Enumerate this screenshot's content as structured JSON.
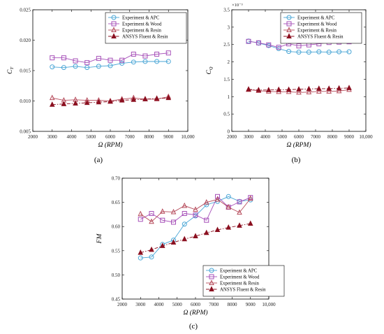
{
  "chart_data": [
    {
      "type": "line",
      "panel_label": "(a)",
      "ylabel": "C",
      "ylabel_sub": "T",
      "xlabel": "Ω (RPM)",
      "xlim": [
        2000,
        10000
      ],
      "ylim": [
        0.005,
        0.025
      ],
      "xticks": [
        2000,
        3000,
        4000,
        5000,
        6000,
        7000,
        8000,
        9000,
        10000
      ],
      "xtick_labels": [
        "2000",
        "3000",
        "4000",
        "5000",
        "6000",
        "7000",
        "8000",
        "9000",
        "10,000"
      ],
      "yticks": [
        0.005,
        0.01,
        0.015,
        0.02,
        0.025
      ],
      "ytick_labels": [
        "0.005",
        "0.010",
        "0.015",
        "0.020",
        "0.025"
      ],
      "y_multiplier": "",
      "legend_position": "top-right",
      "x": [
        3000,
        3600,
        4200,
        4800,
        5400,
        6000,
        6600,
        7200,
        7800,
        8400,
        9000
      ],
      "series": [
        {
          "name": "Experiment & APC",
          "color": "#4aa6d6",
          "marker": "circle",
          "dash": "solid",
          "values": [
            0.0156,
            0.0155,
            0.0157,
            0.0155,
            0.0157,
            0.0158,
            0.0162,
            0.0164,
            0.0165,
            0.0165,
            0.0165
          ]
        },
        {
          "name": "Experiment & Wood",
          "color": "#a64fb8",
          "marker": "square",
          "dash": "solid",
          "values": [
            0.0171,
            0.0171,
            0.0166,
            0.0163,
            0.017,
            0.0167,
            0.0167,
            0.0177,
            0.0174,
            0.0177,
            0.0179
          ]
        },
        {
          "name": "Experiment & Resin",
          "color": "#b54a5a",
          "marker": "triangle-open",
          "dash": "solid",
          "values": [
            0.0105,
            0.0101,
            0.0102,
            0.0101,
            0.0101,
            0.01,
            0.0103,
            0.0105,
            0.0103,
            0.0103,
            0.0107
          ]
        },
        {
          "name": "ANSYS Fluent & Resin",
          "color": "#8b1020",
          "marker": "triangle-filled",
          "dash": "dashdot",
          "values": [
            0.0094,
            0.0095,
            0.0096,
            0.0097,
            0.0098,
            0.0099,
            0.0101,
            0.0102,
            0.0103,
            0.0104,
            0.0105
          ]
        }
      ]
    },
    {
      "type": "line",
      "panel_label": "(b)",
      "ylabel": "C",
      "ylabel_sub": "Q",
      "xlabel": "Ω (RPM)",
      "xlim": [
        2000,
        10000
      ],
      "ylim": [
        0,
        3.5
      ],
      "xticks": [
        2000,
        3000,
        4000,
        5000,
        6000,
        7000,
        8000,
        9000,
        10000
      ],
      "xtick_labels": [
        "2000",
        "3000",
        "4000",
        "5000",
        "6000",
        "7000",
        "8000",
        "9000",
        "10,000"
      ],
      "yticks": [
        0,
        0.5,
        1,
        1.5,
        2,
        2.5,
        3,
        3.5
      ],
      "ytick_labels": [
        "0",
        "0.5",
        "1",
        "1.5",
        "2",
        "2.5",
        "3",
        "3.5"
      ],
      "y_multiplier": "×10⁻³",
      "legend_position": "top-right",
      "x": [
        3000,
        3600,
        4200,
        4800,
        5400,
        6000,
        6600,
        7200,
        7800,
        8400,
        9000
      ],
      "series": [
        {
          "name": "Experiment & APC",
          "color": "#4aa6d6",
          "marker": "circle",
          "dash": "solid",
          "values": [
            2.6,
            2.54,
            2.47,
            2.38,
            2.3,
            2.28,
            2.28,
            2.29,
            2.28,
            2.29,
            2.29
          ]
        },
        {
          "name": "Experiment & Wood",
          "color": "#a64fb8",
          "marker": "square",
          "dash": "solid",
          "values": [
            2.59,
            2.55,
            2.49,
            2.42,
            2.52,
            2.46,
            2.49,
            2.52,
            2.56,
            2.57,
            2.58
          ]
        },
        {
          "name": "Experiment & Resin",
          "color": "#b54a5a",
          "marker": "triangle-open",
          "dash": "solid",
          "values": [
            1.2,
            1.17,
            1.15,
            1.14,
            1.14,
            1.12,
            1.13,
            1.15,
            1.15,
            1.16,
            1.2
          ]
        },
        {
          "name": "ANSYS Fluent & Resin",
          "color": "#8b1020",
          "marker": "triangle-filled",
          "dash": "dashdot",
          "values": [
            1.21,
            1.19,
            1.19,
            1.2,
            1.2,
            1.21,
            1.22,
            1.23,
            1.23,
            1.24,
            1.25
          ]
        }
      ]
    },
    {
      "type": "line",
      "panel_label": "(c)",
      "ylabel": "FM",
      "ylabel_sub": "",
      "xlabel": "Ω (RPM)",
      "xlim": [
        2000,
        10000
      ],
      "ylim": [
        0.45,
        0.7
      ],
      "xticks": [
        2000,
        3000,
        4000,
        5000,
        6000,
        7000,
        8000,
        9000,
        10000
      ],
      "xtick_labels": [
        "2000",
        "3000",
        "4000",
        "5000",
        "6000",
        "7000",
        "8000",
        "9000",
        "10,000"
      ],
      "yticks": [
        0.45,
        0.5,
        0.55,
        0.6,
        0.65,
        0.7
      ],
      "ytick_labels": [
        "0.45",
        "0.50",
        "0.55",
        "0.60",
        "0.65",
        "0.70"
      ],
      "y_multiplier": "",
      "legend_position": "bottom-right",
      "x": [
        3000,
        3600,
        4200,
        4800,
        5400,
        6000,
        6600,
        7200,
        7800,
        8400,
        9000
      ],
      "series": [
        {
          "name": "Experiment & APC",
          "color": "#4aa6d6",
          "marker": "circle",
          "dash": "solid",
          "values": [
            0.535,
            0.537,
            0.563,
            0.572,
            0.605,
            0.622,
            0.645,
            0.652,
            0.662,
            0.652,
            0.655
          ]
        },
        {
          "name": "Experiment & Wood",
          "color": "#a64fb8",
          "marker": "square",
          "dash": "solid",
          "values": [
            0.615,
            0.627,
            0.613,
            0.609,
            0.627,
            0.624,
            0.613,
            0.662,
            0.64,
            0.651,
            0.66
          ]
        },
        {
          "name": "Experiment & Resin",
          "color": "#b54a5a",
          "marker": "triangle-open",
          "dash": "solid",
          "values": [
            0.626,
            0.61,
            0.631,
            0.63,
            0.643,
            0.635,
            0.65,
            0.656,
            0.64,
            0.629,
            0.658
          ]
        },
        {
          "name": "ANSYS Fluent & Resin",
          "color": "#8b1020",
          "marker": "triangle-filled",
          "dash": "dashdot",
          "values": [
            0.546,
            0.552,
            0.56,
            0.567,
            0.574,
            0.58,
            0.587,
            0.593,
            0.598,
            0.602,
            0.606
          ]
        }
      ]
    }
  ]
}
